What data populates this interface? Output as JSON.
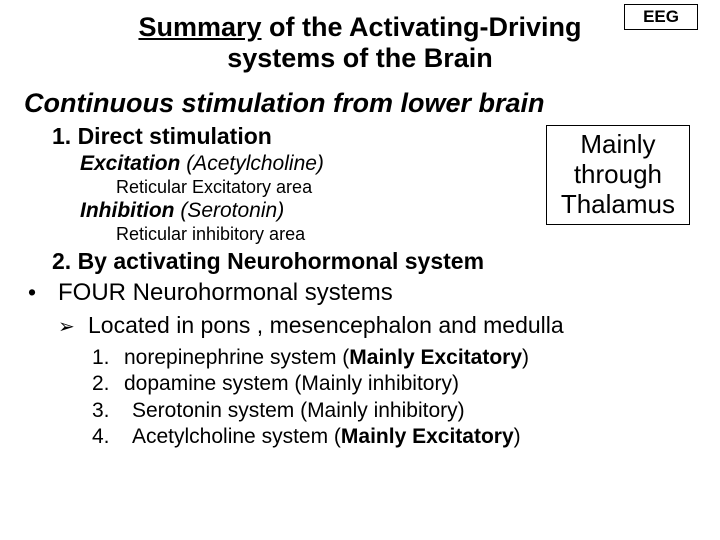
{
  "eeg_label": "EEG",
  "title_underline": "Summary",
  "title_rest": " of the Activating-Driving systems of the Brain",
  "subtitle": "Continuous stimulation from lower brain",
  "section1": {
    "heading": "1.  Direct stimulation",
    "exc_label": "Excitation",
    "exc_paren": "  (Acetylcholine)",
    "exc_sub": "Reticular Excitatory area",
    "inh_label": "Inhibition",
    "inh_paren": " (Serotonin)",
    "inh_sub": "Reticular inhibitory area"
  },
  "callout_l1": "Mainly",
  "callout_l2": "through",
  "callout_l3": "Thalamus",
  "section2_heading": "2. By activating Neurohormonal system",
  "bullet_text": "FOUR Neurohormonal systems",
  "arrow_text": "Located in pons , mesencephalon and medulla",
  "list": [
    {
      "num": "1.",
      "pre": "norepinephrine system (",
      "bold": "Mainly Excitatory",
      "post": ")"
    },
    {
      "num": "2.",
      "pre": "dopamine system (Mainly inhibitory)",
      "bold": "",
      "post": ""
    },
    {
      "num": "3.",
      "pre": "Serotonin system (Mainly inhibitory)",
      "bold": "",
      "post": ""
    },
    {
      "num": "4.",
      "pre": "Acetylcholine system (",
      "bold": "Mainly Excitatory",
      "post": ")"
    }
  ]
}
